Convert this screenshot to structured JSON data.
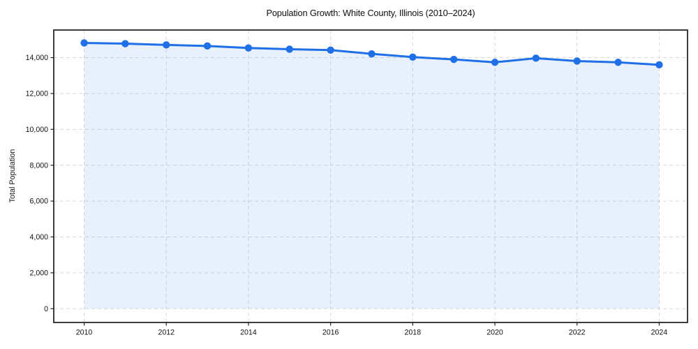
{
  "chart_data": {
    "type": "line",
    "title": "Population Growth: White County, Illinois (2010–2024)",
    "xlabel": "",
    "ylabel": "Total Population",
    "x": [
      2010,
      2011,
      2012,
      2013,
      2014,
      2015,
      2016,
      2017,
      2018,
      2019,
      2020,
      2021,
      2022,
      2023,
      2024
    ],
    "series": [
      {
        "name": "Total Population",
        "values": [
          14820,
          14780,
          14710,
          14650,
          14540,
          14470,
          14420,
          14210,
          14030,
          13900,
          13740,
          13970,
          13810,
          13740,
          13600
        ]
      }
    ],
    "xticks": [
      2010,
      2012,
      2014,
      2016,
      2018,
      2020,
      2022,
      2024
    ],
    "yticks": [
      0,
      2000,
      4000,
      6000,
      8000,
      10000,
      12000,
      14000
    ],
    "xlim": [
      2009.26,
      2024.69
    ],
    "ylim": [
      -770,
      15540
    ],
    "grid": true,
    "grid_style": "dashed",
    "legend_position": "none",
    "line_color": "#1f6fe6",
    "marker_color": "#1f6fe6",
    "fill_color": "#1f6fe6",
    "fill_opacity": 0.1,
    "marker_style": "circle",
    "area_baseline": 0
  }
}
